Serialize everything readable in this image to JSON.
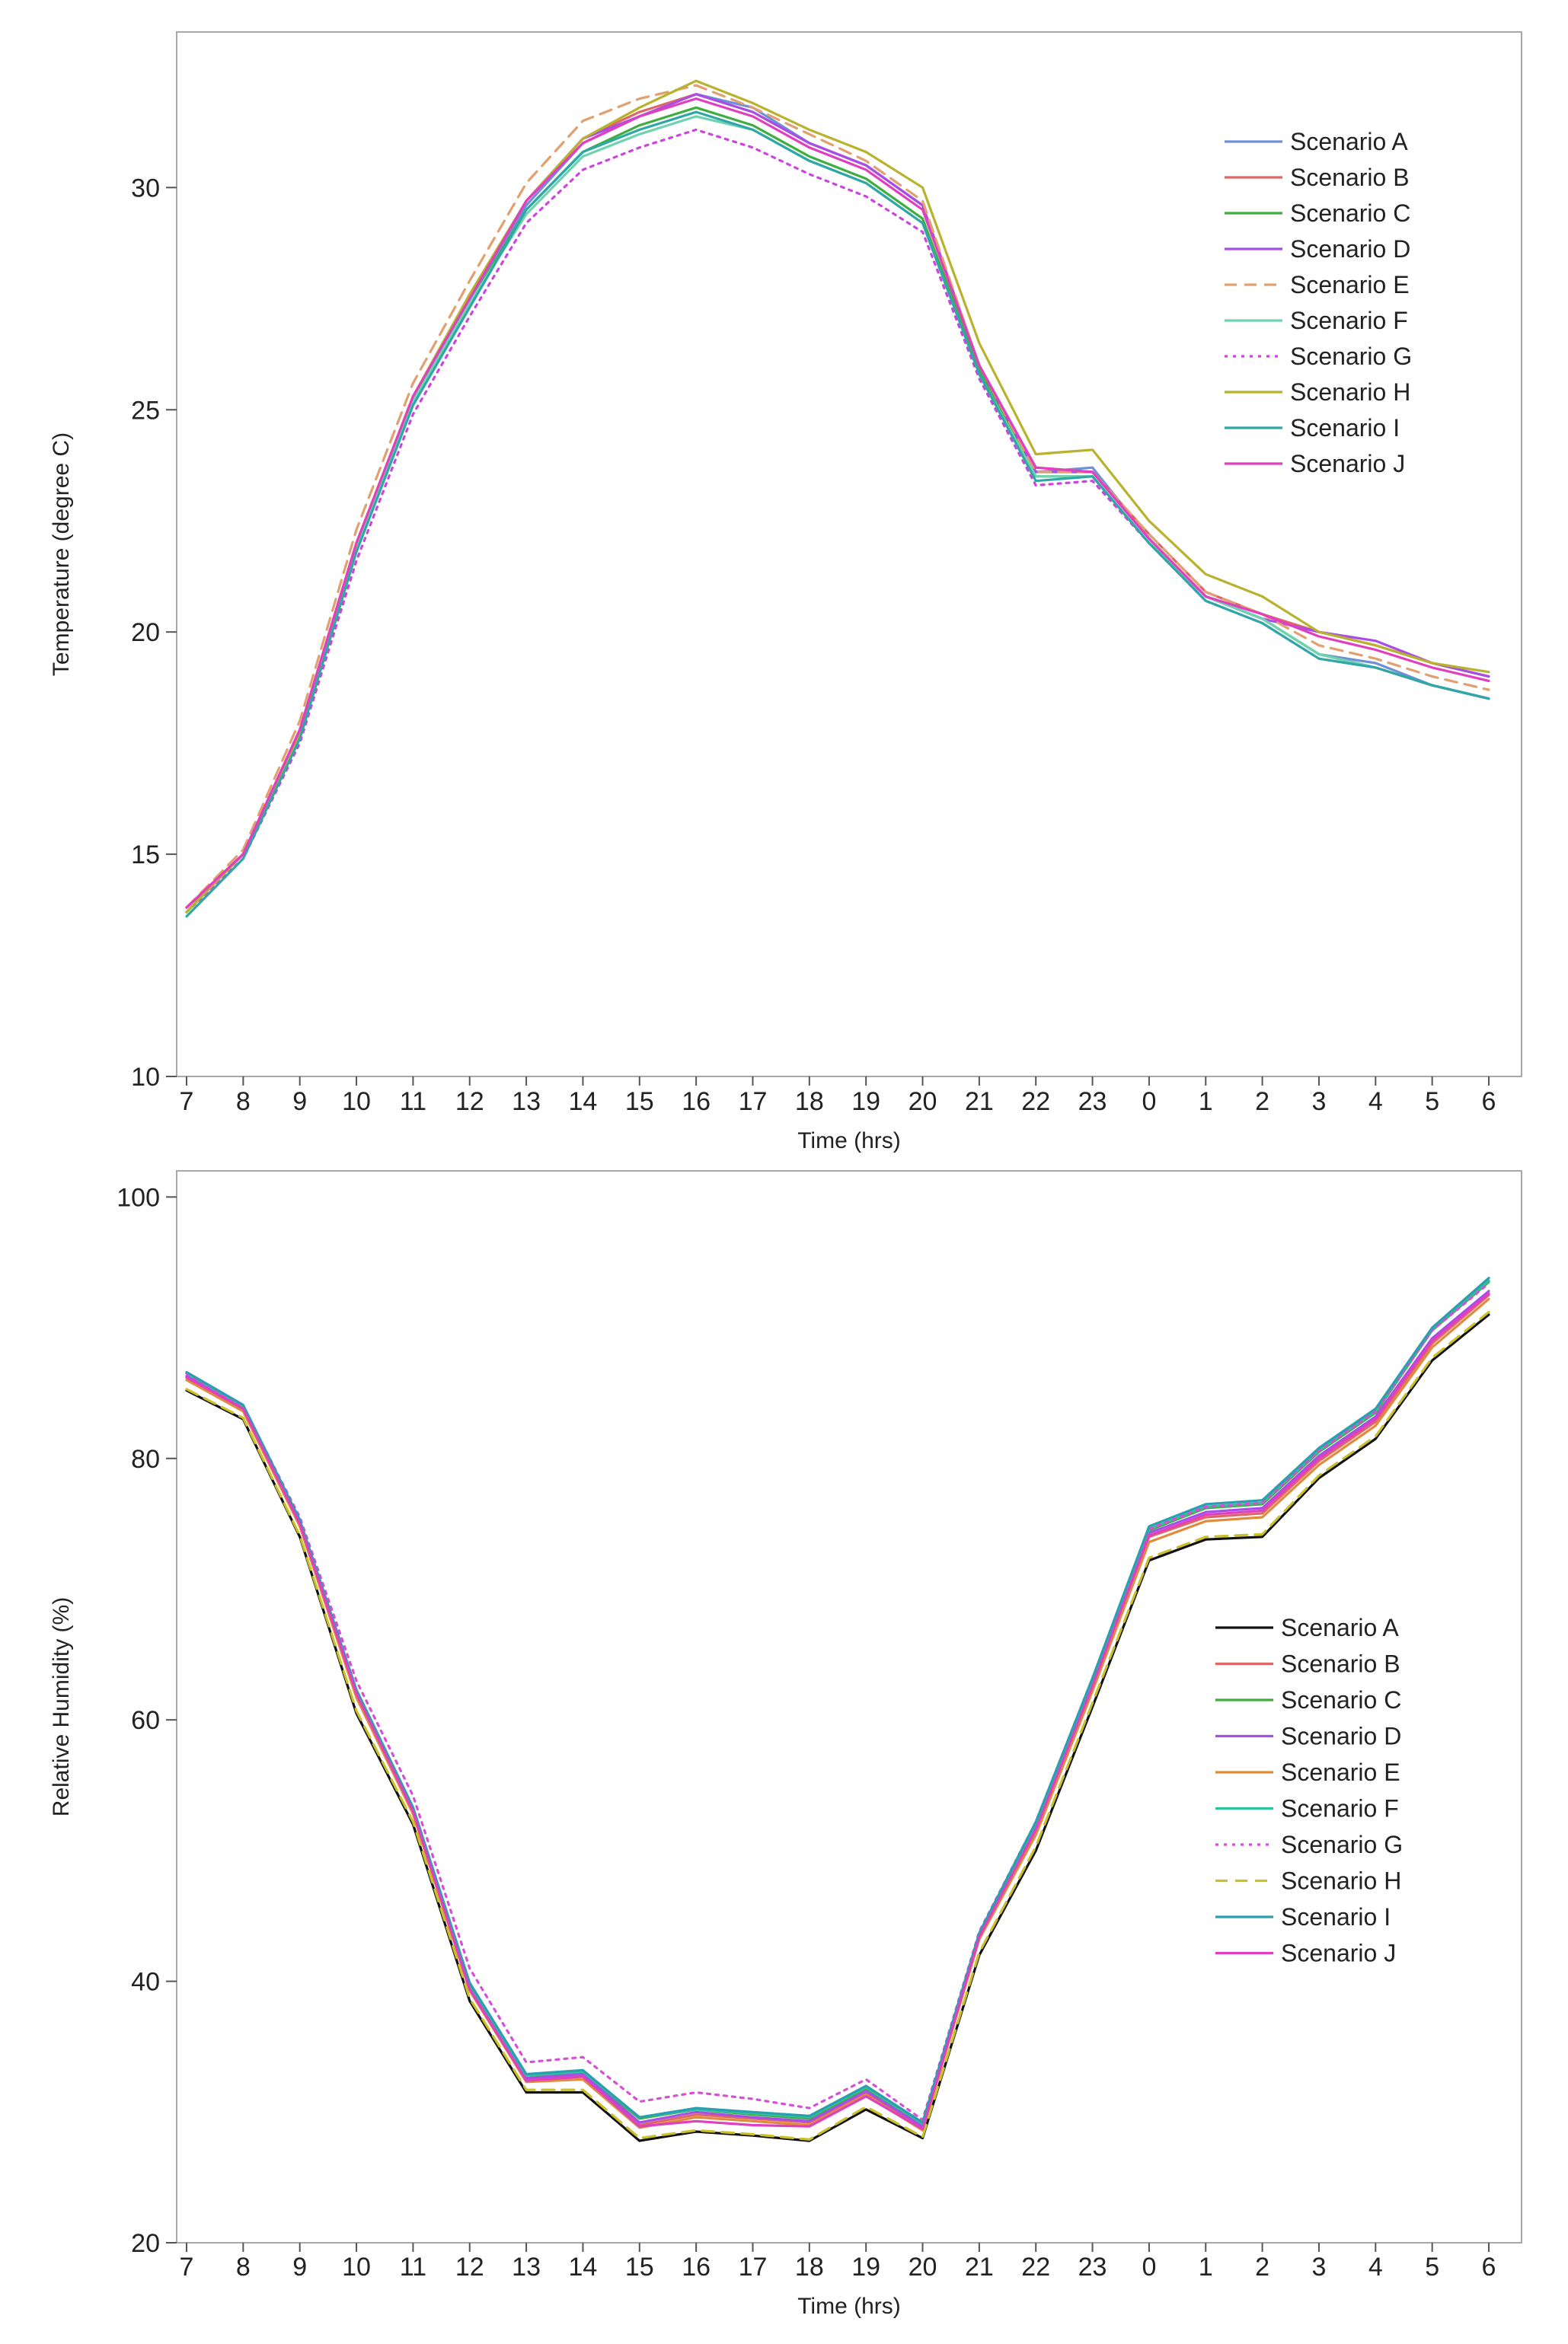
{
  "chart_data": [
    {
      "type": "line",
      "title": "",
      "xlabel": "Time (hrs)",
      "ylabel": "Temperature (degree C)",
      "ylim": [
        10,
        33.5
      ],
      "yticks": [
        10,
        15,
        20,
        25,
        30
      ],
      "grid": false,
      "legend": "top-right",
      "categories": [
        "7",
        "8",
        "9",
        "10",
        "11",
        "12",
        "13",
        "14",
        "15",
        "16",
        "17",
        "18",
        "19",
        "20",
        "21",
        "22",
        "23",
        "0",
        "1",
        "2",
        "3",
        "4",
        "5",
        "6"
      ],
      "series": [
        {
          "name": "Scenario A",
          "color": "#6f8fd8",
          "dash": "solid",
          "values": [
            13.7,
            15.0,
            17.7,
            21.9,
            25.3,
            27.5,
            29.6,
            31.0,
            31.6,
            32.1,
            31.8,
            31.0,
            30.5,
            29.6,
            26.0,
            23.6,
            23.7,
            22.1,
            20.8,
            20.3,
            19.5,
            19.3,
            18.8,
            18.5
          ]
        },
        {
          "name": "Scenario B",
          "color": "#e06666",
          "dash": "solid",
          "values": [
            13.8,
            15.0,
            17.8,
            22.0,
            25.3,
            27.5,
            29.7,
            31.1,
            31.7,
            32.1,
            31.7,
            31.0,
            30.5,
            29.6,
            26.0,
            23.7,
            23.6,
            22.2,
            20.9,
            20.4,
            20.0,
            19.7,
            19.3,
            19.0
          ]
        },
        {
          "name": "Scenario C",
          "color": "#3fae3f",
          "dash": "solid",
          "values": [
            13.7,
            15.0,
            17.7,
            21.9,
            25.2,
            27.4,
            29.5,
            30.8,
            31.4,
            31.8,
            31.4,
            30.7,
            30.2,
            29.3,
            25.9,
            23.5,
            23.5,
            22.0,
            20.8,
            20.3,
            19.5,
            19.2,
            18.8,
            18.5
          ]
        },
        {
          "name": "Scenario D",
          "color": "#a64ee6",
          "dash": "solid",
          "values": [
            13.8,
            15.0,
            17.8,
            22.0,
            25.3,
            27.5,
            29.7,
            31.1,
            31.6,
            32.1,
            31.7,
            31.0,
            30.5,
            29.6,
            26.0,
            23.6,
            23.6,
            22.1,
            20.8,
            20.3,
            20.0,
            19.8,
            19.3,
            19.0
          ]
        },
        {
          "name": "Scenario E",
          "color": "#e0a070",
          "dash": "dashed",
          "values": [
            13.8,
            15.1,
            18.0,
            22.3,
            25.6,
            27.9,
            30.1,
            31.5,
            32.0,
            32.3,
            31.8,
            31.2,
            30.6,
            29.7,
            26.0,
            23.6,
            23.6,
            22.2,
            20.9,
            20.4,
            19.7,
            19.4,
            19.0,
            18.7
          ]
        },
        {
          "name": "Scenario F",
          "color": "#6ed3b1",
          "dash": "solid",
          "values": [
            13.7,
            15.0,
            17.7,
            21.9,
            25.2,
            27.4,
            29.4,
            30.7,
            31.2,
            31.6,
            31.3,
            30.6,
            30.1,
            29.2,
            25.8,
            23.5,
            23.5,
            22.0,
            20.8,
            20.3,
            19.5,
            19.2,
            18.8,
            18.5
          ]
        },
        {
          "name": "Scenario G",
          "color": "#cc44dd",
          "dash": "dotted",
          "values": [
            13.7,
            14.9,
            17.5,
            21.6,
            24.9,
            27.1,
            29.2,
            30.4,
            30.9,
            31.3,
            30.9,
            30.3,
            29.8,
            29.0,
            25.7,
            23.3,
            23.4,
            22.0,
            20.7,
            20.2,
            19.4,
            19.2,
            18.8,
            18.5
          ]
        },
        {
          "name": "Scenario H",
          "color": "#b8b22e",
          "dash": "solid",
          "values": [
            13.7,
            15.0,
            17.7,
            22.0,
            25.3,
            27.6,
            29.7,
            31.1,
            31.8,
            32.4,
            31.9,
            31.3,
            30.8,
            30.0,
            26.5,
            24.0,
            24.1,
            22.5,
            21.3,
            20.8,
            20.0,
            19.7,
            19.3,
            19.1
          ]
        },
        {
          "name": "Scenario I",
          "color": "#2fa7a7",
          "dash": "solid",
          "values": [
            13.6,
            14.9,
            17.6,
            21.8,
            25.1,
            27.3,
            29.5,
            30.8,
            31.3,
            31.7,
            31.3,
            30.6,
            30.1,
            29.2,
            25.8,
            23.4,
            23.5,
            22.0,
            20.7,
            20.2,
            19.4,
            19.2,
            18.8,
            18.5
          ]
        },
        {
          "name": "Scenario J",
          "color": "#e040c0",
          "dash": "solid",
          "values": [
            13.8,
            15.0,
            17.8,
            22.0,
            25.3,
            27.5,
            29.7,
            31.0,
            31.6,
            32.0,
            31.6,
            30.9,
            30.4,
            29.5,
            26.0,
            23.7,
            23.6,
            22.1,
            20.8,
            20.4,
            19.9,
            19.6,
            19.2,
            18.9
          ]
        }
      ]
    },
    {
      "type": "line",
      "title": "",
      "xlabel": "Time (hrs)",
      "ylabel": "Relative Humidity (%)",
      "ylim": [
        20,
        102
      ],
      "yticks": [
        20,
        40,
        60,
        80,
        100
      ],
      "grid": false,
      "legend": "right",
      "categories": [
        "7",
        "8",
        "9",
        "10",
        "11",
        "12",
        "13",
        "14",
        "15",
        "16",
        "17",
        "18",
        "19",
        "20",
        "21",
        "22",
        "23",
        "0",
        "1",
        "2",
        "3",
        "4",
        "5",
        "6"
      ],
      "series": [
        {
          "name": "Scenario A",
          "color": "#111111",
          "dash": "solid",
          "values": [
            85.2,
            83.0,
            74.0,
            60.5,
            52.0,
            38.5,
            31.5,
            31.5,
            27.8,
            28.5,
            28.2,
            27.8,
            30.2,
            28.0,
            42.0,
            50.0,
            61.0,
            72.2,
            73.8,
            74.0,
            78.5,
            81.5,
            87.5,
            91.0
          ]
        },
        {
          "name": "Scenario B",
          "color": "#e06666",
          "dash": "solid",
          "values": [
            86.2,
            83.8,
            75.0,
            62.0,
            53.0,
            39.5,
            32.5,
            32.8,
            29.0,
            29.8,
            29.5,
            29.2,
            31.5,
            28.8,
            43.5,
            51.5,
            62.5,
            74.0,
            75.5,
            75.8,
            79.8,
            82.8,
            88.8,
            92.5
          ]
        },
        {
          "name": "Scenario C",
          "color": "#3fae3f",
          "dash": "solid",
          "values": [
            86.5,
            84.0,
            75.2,
            62.2,
            53.2,
            39.8,
            32.8,
            33.0,
            29.5,
            30.2,
            29.8,
            29.5,
            31.8,
            29.0,
            43.5,
            52.0,
            63.0,
            74.5,
            76.2,
            76.5,
            80.5,
            83.5,
            89.8,
            93.5
          ]
        },
        {
          "name": "Scenario D",
          "color": "#a64ee6",
          "dash": "solid",
          "values": [
            86.3,
            83.9,
            75.1,
            62.1,
            53.1,
            39.6,
            32.6,
            32.9,
            29.2,
            30.0,
            29.6,
            29.3,
            31.6,
            28.9,
            43.5,
            51.8,
            62.8,
            74.3,
            75.9,
            76.2,
            80.2,
            83.2,
            89.2,
            92.8
          ]
        },
        {
          "name": "Scenario E",
          "color": "#e08a3c",
          "dash": "solid",
          "values": [
            86.0,
            83.6,
            74.8,
            61.7,
            52.8,
            39.3,
            32.3,
            32.5,
            28.8,
            29.6,
            29.3,
            29.0,
            31.3,
            28.6,
            43.2,
            51.2,
            62.2,
            73.6,
            75.2,
            75.5,
            79.5,
            82.5,
            88.5,
            92.2
          ]
        },
        {
          "name": "Scenario F",
          "color": "#2fc39a",
          "dash": "solid",
          "values": [
            86.5,
            84.0,
            75.2,
            62.3,
            53.3,
            39.8,
            32.8,
            33.1,
            29.6,
            30.2,
            29.9,
            29.6,
            31.9,
            29.1,
            43.6,
            52.1,
            63.1,
            74.6,
            76.3,
            76.6,
            80.6,
            83.6,
            89.9,
            93.6
          ]
        },
        {
          "name": "Scenario G",
          "color": "#d64fd6",
          "dash": "dotted",
          "values": [
            86.5,
            84.0,
            75.5,
            63.0,
            54.2,
            41.0,
            33.8,
            34.2,
            30.8,
            31.5,
            31.0,
            30.3,
            32.5,
            29.4,
            43.8,
            52.2,
            63.2,
            74.6,
            76.3,
            76.6,
            80.6,
            83.6,
            89.8,
            93.4
          ]
        },
        {
          "name": "Scenario H",
          "color": "#c9c02a",
          "dash": "dashed",
          "values": [
            85.3,
            83.1,
            74.1,
            60.7,
            52.2,
            38.7,
            31.7,
            31.7,
            28.0,
            28.6,
            28.3,
            27.9,
            30.4,
            28.1,
            42.2,
            50.3,
            61.3,
            72.4,
            74.0,
            74.2,
            78.7,
            81.7,
            87.7,
            91.2
          ]
        },
        {
          "name": "Scenario I",
          "color": "#2a9fb0",
          "dash": "solid",
          "values": [
            86.6,
            84.1,
            75.3,
            62.3,
            53.3,
            39.9,
            32.9,
            33.2,
            29.6,
            30.3,
            30.0,
            29.7,
            32.0,
            29.2,
            43.7,
            52.2,
            63.2,
            74.8,
            76.5,
            76.8,
            80.8,
            83.8,
            90.0,
            93.8
          ]
        },
        {
          "name": "Scenario J",
          "color": "#e040c0",
          "dash": "solid",
          "values": [
            86.2,
            83.8,
            75.0,
            62.0,
            53.0,
            39.4,
            32.4,
            32.7,
            28.9,
            29.3,
            29.0,
            28.9,
            31.2,
            28.7,
            43.4,
            51.6,
            62.6,
            74.1,
            75.7,
            76.0,
            80.0,
            83.0,
            89.0,
            92.6
          ]
        }
      ]
    }
  ]
}
